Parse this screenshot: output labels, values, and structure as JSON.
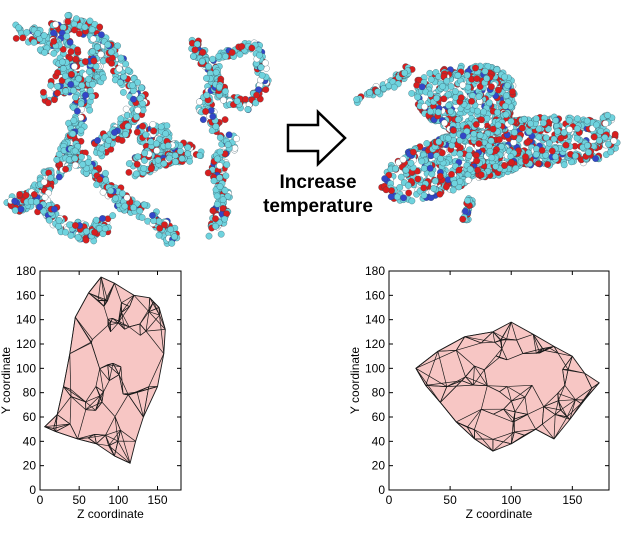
{
  "arrow_label_line1": "Increase",
  "arrow_label_line2": "temperature",
  "colors": {
    "atom_carbon": "#6fd3de",
    "atom_oxygen": "#d81e1e",
    "atom_nitrogen": "#3346c8",
    "mesh_fill": "#f7c6c4",
    "mesh_edge": "#1a1a1a"
  },
  "chart_data": [
    {
      "type": "mesh",
      "xlabel": "Z coordinate",
      "ylabel": "Y coordinate",
      "xlim": [
        0,
        180
      ],
      "ylim": [
        0,
        180
      ],
      "xticks": [
        0,
        50,
        100,
        150
      ],
      "yticks": [
        0,
        20,
        40,
        60,
        80,
        100,
        120,
        140,
        160,
        180
      ],
      "outline": [
        [
          6,
          52
        ],
        [
          20,
          48
        ],
        [
          48,
          42
        ],
        [
          72,
          38
        ],
        [
          95,
          28
        ],
        [
          115,
          22
        ],
        [
          122,
          40
        ],
        [
          132,
          60
        ],
        [
          150,
          85
        ],
        [
          158,
          112
        ],
        [
          160,
          132
        ],
        [
          152,
          150
        ],
        [
          140,
          158
        ],
        [
          120,
          160
        ],
        [
          95,
          170
        ],
        [
          78,
          175
        ],
        [
          62,
          162
        ],
        [
          45,
          142
        ],
        [
          38,
          112
        ],
        [
          30,
          85
        ],
        [
          22,
          62
        ]
      ]
    },
    {
      "type": "mesh",
      "xlabel": "Z coordinate",
      "ylabel": "Y coordinate",
      "xlim": [
        0,
        180
      ],
      "ylim": [
        0,
        180
      ],
      "xticks": [
        0,
        50,
        100,
        150
      ],
      "yticks": [
        0,
        20,
        40,
        60,
        80,
        100,
        120,
        140,
        160,
        180
      ],
      "outline": [
        [
          22,
          100
        ],
        [
          40,
          114
        ],
        [
          62,
          126
        ],
        [
          85,
          130
        ],
        [
          100,
          138
        ],
        [
          118,
          128
        ],
        [
          135,
          118
        ],
        [
          150,
          110
        ],
        [
          160,
          96
        ],
        [
          172,
          88
        ],
        [
          160,
          74
        ],
        [
          148,
          58
        ],
        [
          135,
          42
        ],
        [
          120,
          50
        ],
        [
          100,
          38
        ],
        [
          85,
          32
        ],
        [
          70,
          42
        ],
        [
          55,
          56
        ],
        [
          42,
          72
        ],
        [
          30,
          86
        ]
      ]
    }
  ]
}
